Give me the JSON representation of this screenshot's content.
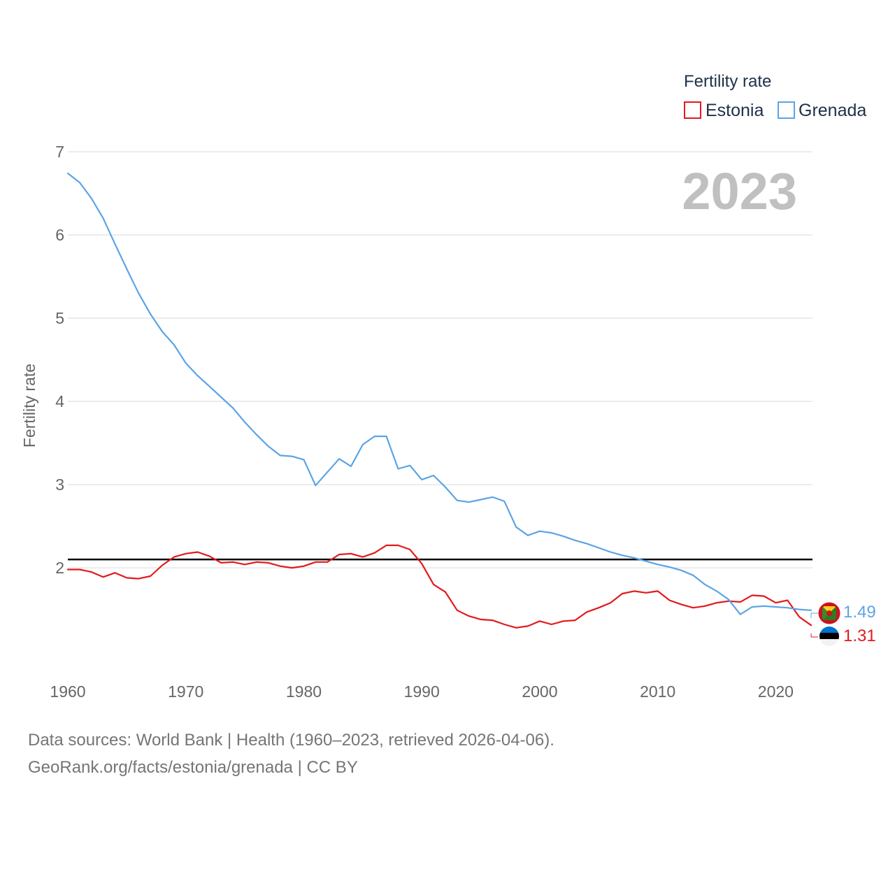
{
  "chart_data": {
    "type": "line",
    "ylabel": "Fertility rate",
    "xlabel": "",
    "year_label": "2023",
    "ylim": [
      0.9,
      7
    ],
    "xlim": [
      1960,
      2023
    ],
    "y_ticks": [
      2,
      3,
      4,
      5,
      6,
      7
    ],
    "x_ticks": [
      1960,
      1970,
      1980,
      1990,
      2000,
      2010,
      2020
    ],
    "grid": true,
    "legend": {
      "title": "Fertility rate",
      "placement": "top-right"
    },
    "reference_line": {
      "value": 2.1,
      "color": "#000000"
    },
    "x": [
      1960,
      1961,
      1962,
      1963,
      1964,
      1965,
      1966,
      1967,
      1968,
      1969,
      1970,
      1971,
      1972,
      1973,
      1974,
      1975,
      1976,
      1977,
      1978,
      1979,
      1980,
      1981,
      1982,
      1983,
      1984,
      1985,
      1986,
      1987,
      1988,
      1989,
      1990,
      1991,
      1992,
      1993,
      1994,
      1995,
      1996,
      1997,
      1998,
      1999,
      2000,
      2001,
      2002,
      2003,
      2004,
      2005,
      2006,
      2007,
      2008,
      2009,
      2010,
      2011,
      2012,
      2013,
      2014,
      2015,
      2016,
      2017,
      2018,
      2019,
      2020,
      2021,
      2022,
      2023
    ],
    "series": [
      {
        "name": "Estonia",
        "color": "#e31a1c",
        "end_label": "1.31",
        "values": [
          1.98,
          1.98,
          1.95,
          1.89,
          1.94,
          1.88,
          1.87,
          1.9,
          2.03,
          2.13,
          2.17,
          2.19,
          2.14,
          2.06,
          2.07,
          2.04,
          2.07,
          2.06,
          2.02,
          2.0,
          2.02,
          2.07,
          2.07,
          2.16,
          2.17,
          2.13,
          2.18,
          2.27,
          2.27,
          2.22,
          2.05,
          1.8,
          1.71,
          1.49,
          1.42,
          1.38,
          1.37,
          1.32,
          1.28,
          1.3,
          1.36,
          1.32,
          1.36,
          1.37,
          1.47,
          1.52,
          1.58,
          1.69,
          1.72,
          1.7,
          1.72,
          1.61,
          1.56,
          1.52,
          1.54,
          1.58,
          1.6,
          1.59,
          1.67,
          1.66,
          1.58,
          1.61,
          1.41,
          1.31
        ]
      },
      {
        "name": "Grenada",
        "color": "#5ba4e5",
        "end_label": "1.49",
        "values": [
          6.74,
          6.63,
          6.44,
          6.2,
          5.89,
          5.59,
          5.3,
          5.05,
          4.84,
          4.68,
          4.46,
          4.31,
          4.18,
          4.05,
          3.92,
          3.75,
          3.6,
          3.46,
          3.35,
          3.34,
          3.3,
          2.99,
          3.15,
          3.31,
          3.22,
          3.48,
          3.58,
          3.58,
          3.19,
          3.23,
          3.06,
          3.11,
          2.97,
          2.81,
          2.79,
          2.82,
          2.85,
          2.8,
          2.49,
          2.39,
          2.44,
          2.42,
          2.38,
          2.33,
          2.29,
          2.24,
          2.19,
          2.15,
          2.12,
          2.08,
          2.04,
          2.01,
          1.97,
          1.91,
          1.8,
          1.72,
          1.62,
          1.44,
          1.53,
          1.54,
          1.53,
          1.52,
          1.5,
          1.49
        ]
      }
    ]
  },
  "footer": {
    "line1": "Data sources: World Bank | Health (1960–2023, retrieved 2026-04-06).",
    "line2": "GeoRank.org/facts/estonia/grenada | CC BY"
  }
}
